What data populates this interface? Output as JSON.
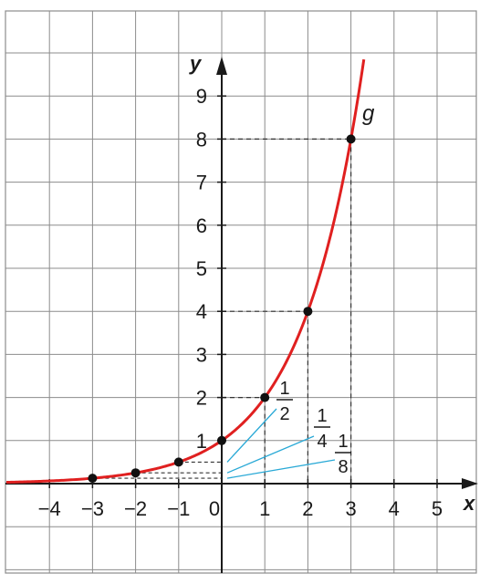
{
  "chart_data": {
    "type": "line",
    "title": "",
    "xlabel": "x",
    "ylabel": "y",
    "xlim": [
      -5,
      6
    ],
    "ylim": [
      -2,
      11
    ],
    "grid": true,
    "x_ticks": [
      -4,
      -3,
      -2,
      -1,
      0,
      1,
      2,
      3,
      4,
      5
    ],
    "y_ticks": [
      1,
      2,
      3,
      4,
      5,
      6,
      7,
      8,
      9
    ],
    "x_tick_labels": [
      "−4",
      "−3",
      "−2",
      "−1",
      "0",
      "1",
      "2",
      "3",
      "4",
      "5"
    ],
    "y_tick_labels": [
      "1",
      "2",
      "3",
      "4",
      "5",
      "6",
      "7",
      "8",
      "9"
    ],
    "series": [
      {
        "name": "g",
        "color": "#e02020",
        "function": "2^x",
        "x_range": [
          -5,
          3.3
        ]
      }
    ],
    "points": [
      {
        "x": -3,
        "y": 0.125
      },
      {
        "x": -2,
        "y": 0.25
      },
      {
        "x": -1,
        "y": 0.5
      },
      {
        "x": 0,
        "y": 1
      },
      {
        "x": 1,
        "y": 2
      },
      {
        "x": 2,
        "y": 4
      },
      {
        "x": 3,
        "y": 8
      }
    ],
    "fraction_annotations": [
      {
        "numerator": "1",
        "denominator": "2",
        "value": 0.5
      },
      {
        "numerator": "1",
        "denominator": "4",
        "value": 0.25
      },
      {
        "numerator": "1",
        "denominator": "8",
        "value": 0.125
      }
    ],
    "colors": {
      "grid": "#8c8c8c",
      "axis": "#1a1a1a",
      "curve": "#e02020",
      "leader": "#29a9d6",
      "guide": "#333333"
    }
  }
}
